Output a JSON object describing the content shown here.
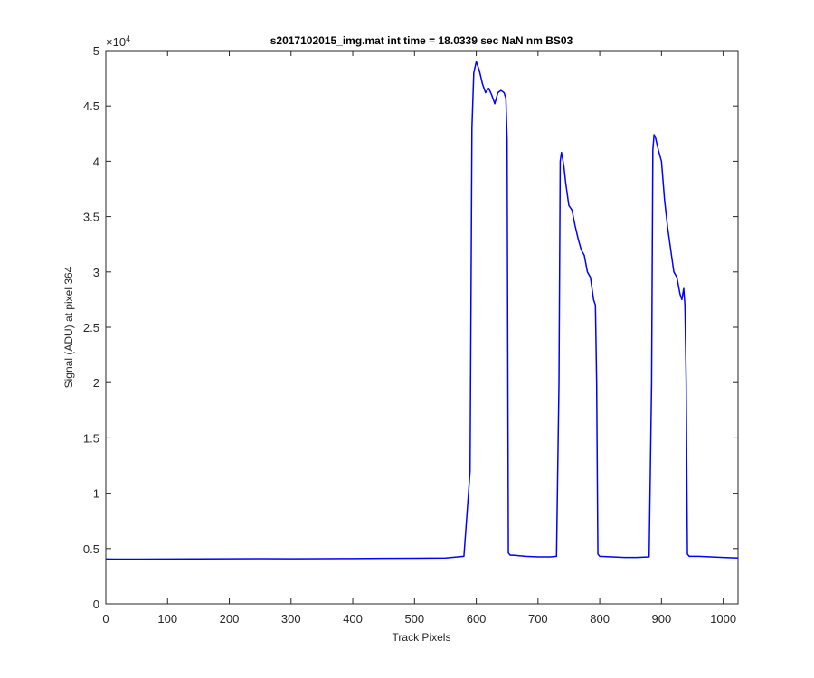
{
  "chart_data": {
    "type": "line",
    "title": "s2017102015_img.mat int time = 18.0339 sec  NaN nm BS03",
    "xlabel": "Track Pixels",
    "ylabel": "Signal (ADU) at pixel 364",
    "xlim": [
      0,
      1024
    ],
    "ylim": [
      0,
      50000
    ],
    "x_ticks": [
      0,
      100,
      200,
      300,
      400,
      500,
      600,
      700,
      800,
      900,
      1000
    ],
    "y_ticks": [
      0,
      5000,
      10000,
      15000,
      20000,
      25000,
      30000,
      35000,
      40000,
      45000,
      50000
    ],
    "y_tick_labels": [
      "0",
      "0.5",
      "1",
      "1.5",
      "2",
      "2.5",
      "3",
      "3.5",
      "4",
      "4.5",
      "5"
    ],
    "y_exponent_base": "×10",
    "y_exponent_power": "4",
    "grid": false,
    "series": [
      {
        "color": "#0000ff",
        "x": [
          0,
          50,
          100,
          150,
          200,
          250,
          300,
          350,
          400,
          450,
          500,
          550,
          580,
          590,
          593,
          596,
          600,
          605,
          610,
          615,
          620,
          625,
          630,
          635,
          640,
          645,
          648,
          650,
          652,
          655,
          660,
          680,
          700,
          720,
          730,
          734,
          736,
          738,
          740,
          742,
          745,
          750,
          755,
          760,
          765,
          770,
          775,
          780,
          785,
          790,
          793,
          795,
          797,
          800,
          820,
          840,
          860,
          880,
          884,
          886,
          888,
          890,
          895,
          900,
          905,
          910,
          915,
          920,
          925,
          930,
          933,
          936,
          938,
          940,
          942,
          945,
          960,
          980,
          1000,
          1024
        ],
        "y": [
          4050,
          4040,
          4050,
          4060,
          4070,
          4080,
          4070,
          4090,
          4100,
          4120,
          4130,
          4150,
          4300,
          12000,
          43000,
          48000,
          49000,
          48200,
          47000,
          46200,
          46600,
          46000,
          45200,
          46200,
          46400,
          46200,
          45700,
          42000,
          4600,
          4400,
          4400,
          4300,
          4250,
          4250,
          4300,
          20000,
          40000,
          40800,
          40200,
          39500,
          38000,
          36000,
          35600,
          34200,
          33000,
          32000,
          31500,
          30000,
          29500,
          27500,
          27000,
          20000,
          4500,
          4300,
          4250,
          4200,
          4200,
          4250,
          20000,
          41000,
          42400,
          42200,
          41000,
          40000,
          36500,
          34000,
          32000,
          30000,
          29500,
          28000,
          27500,
          28500,
          27000,
          20000,
          4500,
          4300,
          4300,
          4250,
          4200,
          4150
        ]
      }
    ]
  }
}
